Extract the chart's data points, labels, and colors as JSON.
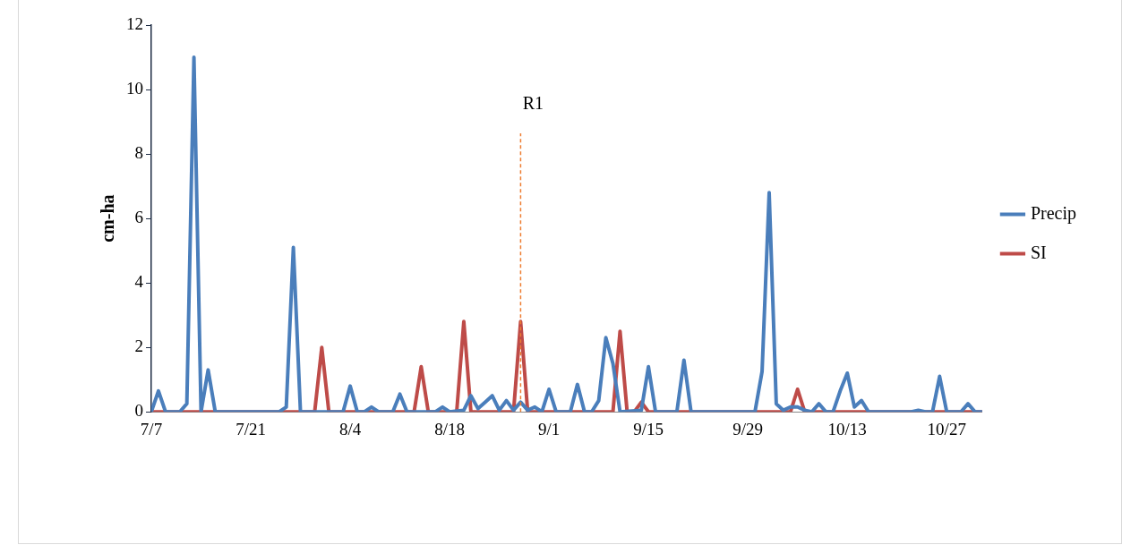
{
  "chart_data": {
    "type": "line",
    "ylabel": "cm-ha",
    "xlim": [
      "--07-07",
      "--11-01"
    ],
    "xticks": [
      {
        "value": "--07-07",
        "label": "7/7"
      },
      {
        "value": "--07-21",
        "label": "7/21"
      },
      {
        "value": "--08-04",
        "label": "8/4"
      },
      {
        "value": "--08-18",
        "label": "8/18"
      },
      {
        "value": "--09-01",
        "label": "9/1"
      },
      {
        "value": "--09-15",
        "label": "9/15"
      },
      {
        "value": "--09-29",
        "label": "9/29"
      },
      {
        "value": "--10-13",
        "label": "10/13"
      },
      {
        "value": "--10-27",
        "label": "10/27"
      }
    ],
    "ylim": [
      0,
      12
    ],
    "yticks": [
      0,
      2,
      4,
      6,
      8,
      10,
      12
    ],
    "grid": false,
    "legend": "right",
    "marker": "none",
    "line_style": "solid",
    "ref_lines": [
      {
        "axis": "x",
        "value": "--08-28",
        "label": "R1",
        "color": "#ed7d31",
        "line_style": "dashed"
      }
    ],
    "series": [
      {
        "name": "Precip",
        "color": "#4a7ebb",
        "x": [
          "--07-07",
          "--07-08",
          "--07-09",
          "--07-11",
          "--07-12",
          "--07-13",
          "--07-14",
          "--07-15",
          "--07-16",
          "--07-25",
          "--07-26",
          "--07-27",
          "--07-28",
          "--08-03",
          "--08-04",
          "--08-05",
          "--08-06",
          "--08-07",
          "--08-08",
          "--08-10",
          "--08-11",
          "--08-12",
          "--08-16",
          "--08-17",
          "--08-18",
          "--08-20",
          "--08-21",
          "--08-22",
          "--08-23",
          "--08-24",
          "--08-25",
          "--08-26",
          "--08-27",
          "--08-28",
          "--08-29",
          "--08-30",
          "--08-31",
          "--09-01",
          "--09-02",
          "--09-04",
          "--09-05",
          "--09-06",
          "--09-07",
          "--09-08",
          "--09-09",
          "--09-10",
          "--09-11",
          "--09-14",
          "--09-15",
          "--09-16",
          "--09-19",
          "--09-20",
          "--09-21",
          "--09-30",
          "--10-01",
          "--10-02",
          "--10-03",
          "--10-04",
          "--10-05",
          "--10-06",
          "--10-07",
          "--10-08",
          "--10-09",
          "--10-10",
          "--10-11",
          "--10-12",
          "--10-13",
          "--10-14",
          "--10-15",
          "--10-16",
          "--10-22",
          "--10-23",
          "--10-24",
          "--10-25",
          "--10-26",
          "--10-27",
          "--10-29",
          "--10-30",
          "--10-31",
          "--11-01"
        ],
        "values": [
          0,
          0.65,
          0,
          0,
          0.25,
          11,
          0,
          1.3,
          0,
          0,
          0.15,
          5.1,
          0,
          0,
          0.8,
          0,
          0,
          0.15,
          0,
          0,
          0.55,
          0,
          0,
          0.15,
          0,
          0.05,
          0.5,
          0.1,
          0.3,
          0.5,
          0.05,
          0.35,
          0.05,
          0.3,
          0.05,
          0.15,
          0,
          0.7,
          0,
          0,
          0.85,
          0,
          0,
          0.35,
          2.3,
          1.5,
          0,
          0.05,
          1.4,
          0,
          0,
          1.6,
          0,
          0,
          1.25,
          6.8,
          0.25,
          0.05,
          0.15,
          0.15,
          0.05,
          0,
          0.25,
          0,
          0,
          0.65,
          1.2,
          0.15,
          0.35,
          0,
          0,
          0.05,
          0,
          0,
          1.1,
          0,
          0,
          0.25,
          0,
          0
        ]
      },
      {
        "name": "SI",
        "color": "#be4b48",
        "x": [
          "--07-07",
          "--07-30",
          "--07-31",
          "--08-01",
          "--08-13",
          "--08-14",
          "--08-15",
          "--08-19",
          "--08-20",
          "--08-21",
          "--08-27",
          "--08-28",
          "--08-29",
          "--09-10",
          "--09-11",
          "--09-12",
          "--09-13",
          "--09-14",
          "--09-15",
          "--10-05",
          "--10-06",
          "--10-07",
          "--11-01"
        ],
        "values": [
          0,
          0,
          2.0,
          0,
          0,
          1.4,
          0,
          0,
          2.8,
          0,
          0,
          2.8,
          0,
          0,
          2.5,
          0,
          0,
          0.3,
          0,
          0,
          0.7,
          0,
          0
        ]
      }
    ]
  }
}
